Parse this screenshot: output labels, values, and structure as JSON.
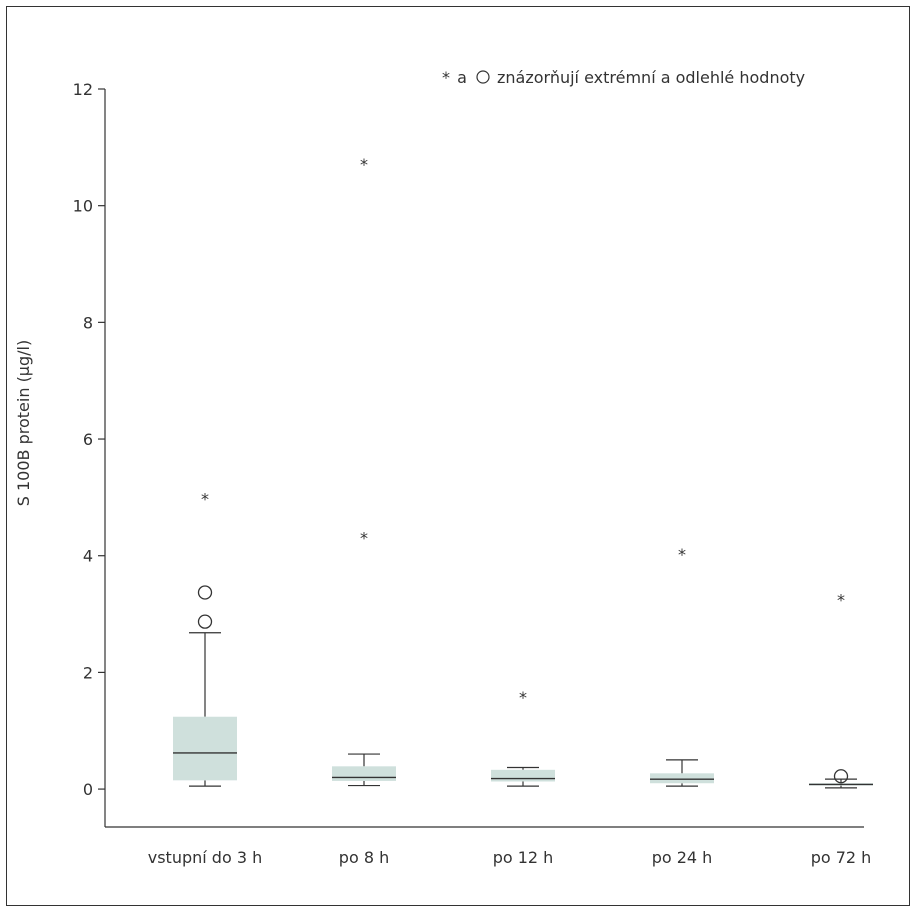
{
  "chart_data": {
    "type": "box",
    "title": "",
    "xlabel": "",
    "ylabel": "S 100B protein (µg/l)",
    "ylim": [
      -0.65,
      12
    ],
    "yticks": [
      0,
      2,
      4,
      6,
      8,
      10,
      12
    ],
    "grid": false,
    "legend": {
      "text": "a",
      "text_rest": "znázorňují extrémní a odlehlé hodnoty",
      "placement": "top-right"
    },
    "colors": {
      "box_fill": "#cfe0dc",
      "line": "#333333"
    },
    "categories": [
      "vstupní do 3 h",
      "po 8 h",
      "po 12 h",
      "po 24 h",
      "po 72 h"
    ],
    "boxes": [
      {
        "category": "vstupní do 3 h",
        "whisker_low": 0.05,
        "q1": 0.15,
        "median": 0.62,
        "q3": 1.24,
        "whisker_high": 2.68,
        "outliers": [
          2.87,
          3.37
        ],
        "extremes": [
          5.05
        ]
      },
      {
        "category": "po 8 h",
        "whisker_low": 0.06,
        "q1": 0.14,
        "median": 0.2,
        "q3": 0.39,
        "whisker_high": 0.6,
        "outliers": [],
        "extremes": [
          4.38,
          10.78
        ]
      },
      {
        "category": "po 12 h",
        "whisker_low": 0.05,
        "q1": 0.13,
        "median": 0.18,
        "q3": 0.33,
        "whisker_high": 0.37,
        "outliers": [],
        "extremes": [
          1.65
        ]
      },
      {
        "category": "po 24 h",
        "whisker_low": 0.05,
        "q1": 0.1,
        "median": 0.17,
        "q3": 0.27,
        "whisker_high": 0.5,
        "outliers": [],
        "extremes": [
          4.1
        ]
      },
      {
        "category": "po 72 h",
        "whisker_low": 0.02,
        "q1": 0.06,
        "median": 0.08,
        "q3": 0.1,
        "whisker_high": 0.17,
        "outliers": [
          0.22
        ],
        "extremes": [
          3.32
        ]
      }
    ]
  }
}
